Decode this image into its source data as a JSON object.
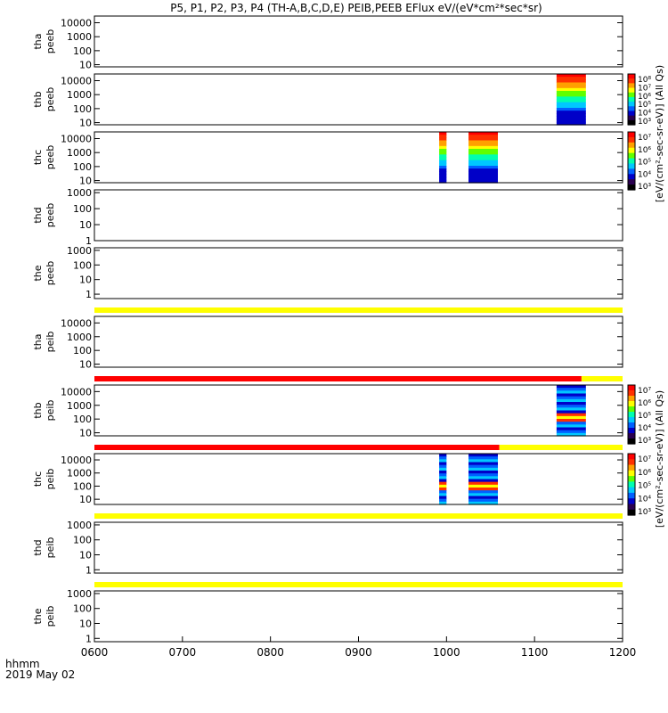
{
  "chart_data": {
    "type": "heatmap",
    "title": "P5, P1, P2, P3, P4 (TH-A,B,C,D,E) PEIB,PEEB EFlux eV/(eV*cm²*sec*sr)",
    "xaxis": {
      "label_line1": "hhmm",
      "label_line2": "2019 May 02",
      "range": [
        "0600",
        "1200"
      ],
      "ticks": [
        "0600",
        "0700",
        "0800",
        "0900",
        "1000",
        "1100",
        "1200"
      ]
    },
    "panels": [
      {
        "probe": "tha",
        "product": "peeb",
        "ylabel1": "tha",
        "ylabel2": "peeb",
        "ylim": [
          7,
          30000
        ],
        "ticks": [
          "10000",
          "1000",
          "100",
          "10"
        ],
        "tickvals": [
          10000,
          1000,
          100,
          10
        ],
        "spectra": [],
        "status_bar": []
      },
      {
        "probe": "thb",
        "product": "peeb",
        "ylabel1": "thb",
        "ylabel2": "peeb",
        "ylim": [
          7,
          30000
        ],
        "ticks": [
          "10000",
          "1000",
          "100",
          "10"
        ],
        "tickvals": [
          10000,
          1000,
          100,
          10
        ],
        "spectra": [
          {
            "start": "1115",
            "end": "1135"
          }
        ],
        "status_bar": []
      },
      {
        "probe": "thc",
        "product": "peeb",
        "ylabel1": "thc",
        "ylabel2": "peeb",
        "ylim": [
          7,
          30000
        ],
        "ticks": [
          "10000",
          "1000",
          "100",
          "10"
        ],
        "tickvals": [
          10000,
          1000,
          100,
          10
        ],
        "spectra": [
          {
            "start": "0955",
            "end": "1000"
          },
          {
            "start": "1015",
            "end": "1035"
          }
        ],
        "status_bar": []
      },
      {
        "probe": "thd",
        "product": "peeb",
        "ylabel1": "thd",
        "ylabel2": "peeb",
        "ylim": [
          1,
          1500
        ],
        "ticks": [
          "1000",
          "100",
          "10",
          "1"
        ],
        "tickvals": [
          1000,
          100,
          10,
          1
        ],
        "spectra": [],
        "status_bar": []
      },
      {
        "probe": "the",
        "product": "peeb",
        "ylabel1": "the",
        "ylabel2": "peeb",
        "ylim": [
          0.5,
          1500
        ],
        "ticks": [
          "1000",
          "100",
          "10",
          "1"
        ],
        "tickvals": [
          1000,
          100,
          10,
          1
        ],
        "spectra": [],
        "status_bar": [
          {
            "start": "0600",
            "end": "1200",
            "color": "#ffff00"
          }
        ]
      },
      {
        "probe": "tha",
        "product": "peib",
        "ylabel1": "tha",
        "ylabel2": "peib",
        "ylim": [
          6,
          30000
        ],
        "ticks": [
          "10000",
          "1000",
          "100",
          "10"
        ],
        "tickvals": [
          10000,
          1000,
          100,
          10
        ],
        "spectra": [],
        "status_bar": [
          {
            "start": "0600",
            "end": "1132",
            "color": "#ff0000"
          },
          {
            "start": "1132",
            "end": "1200",
            "color": "#ffff00"
          }
        ]
      },
      {
        "probe": "thb",
        "product": "peib",
        "ylabel1": "thb",
        "ylabel2": "peib",
        "ylim": [
          6,
          30000
        ],
        "ticks": [
          "10000",
          "1000",
          "100",
          "10"
        ],
        "tickvals": [
          10000,
          1000,
          100,
          10
        ],
        "spectra": [
          {
            "start": "1115",
            "end": "1135"
          }
        ],
        "status_bar": [
          {
            "start": "0600",
            "end": "1036",
            "color": "#ff0000"
          },
          {
            "start": "1036",
            "end": "1200",
            "color": "#ffff00"
          }
        ]
      },
      {
        "probe": "thc",
        "product": "peib",
        "ylabel1": "thc",
        "ylabel2": "peib",
        "ylim": [
          4,
          30000
        ],
        "ticks": [
          "10000",
          "1000",
          "100",
          "10"
        ],
        "tickvals": [
          10000,
          1000,
          100,
          10
        ],
        "spectra": [
          {
            "start": "0955",
            "end": "1000"
          },
          {
            "start": "1015",
            "end": "1035"
          }
        ],
        "status_bar": [
          {
            "start": "0600",
            "end": "1200",
            "color": "#ffff00"
          }
        ]
      },
      {
        "probe": "thd",
        "product": "peib",
        "ylabel1": "thd",
        "ylabel2": "peib",
        "ylim": [
          0.6,
          1500
        ],
        "ticks": [
          "1000",
          "100",
          "10",
          "1"
        ],
        "tickvals": [
          1000,
          100,
          10,
          1
        ],
        "spectra": [],
        "status_bar": [
          {
            "start": "0600",
            "end": "1200",
            "color": "#ffff00"
          }
        ]
      },
      {
        "probe": "the",
        "product": "peib",
        "ylabel1": "the",
        "ylabel2": "peib",
        "ylim": [
          0.6,
          1500
        ],
        "ticks": [
          "1000",
          "100",
          "10",
          "1"
        ],
        "tickvals": [
          1000,
          100,
          10,
          1
        ],
        "spectra": [],
        "status_bar": []
      }
    ],
    "colorbars": [
      {
        "for": "peeb",
        "label": "[eV/(cm²-sec-sr-eV)] (All Qs)",
        "ticks_upper": [
          "10⁸",
          "10⁷",
          "10⁶",
          "10⁵",
          "10⁴",
          "10³"
        ],
        "ticks_lower": [
          "10⁷",
          "10⁶",
          "10⁵",
          "10⁴",
          "10³"
        ]
      },
      {
        "for": "peib",
        "label": "[eV/(cm²-sec-sr-eV)] (All Qs)",
        "ticks_upper": [
          "10⁷",
          "10⁶",
          "10⁵",
          "10⁴",
          "10³"
        ],
        "ticks_lower": [
          "10⁷",
          "10⁶",
          "10⁵",
          "10⁴",
          "10³"
        ]
      }
    ],
    "colormap": [
      "#000000",
      "#2a0050",
      "#0000c8",
      "#0060ff",
      "#00c8ff",
      "#00ffb0",
      "#60ff00",
      "#ffff00",
      "#ffa000",
      "#ff3000",
      "#ff0000"
    ],
    "grid": false,
    "legend": "none"
  }
}
